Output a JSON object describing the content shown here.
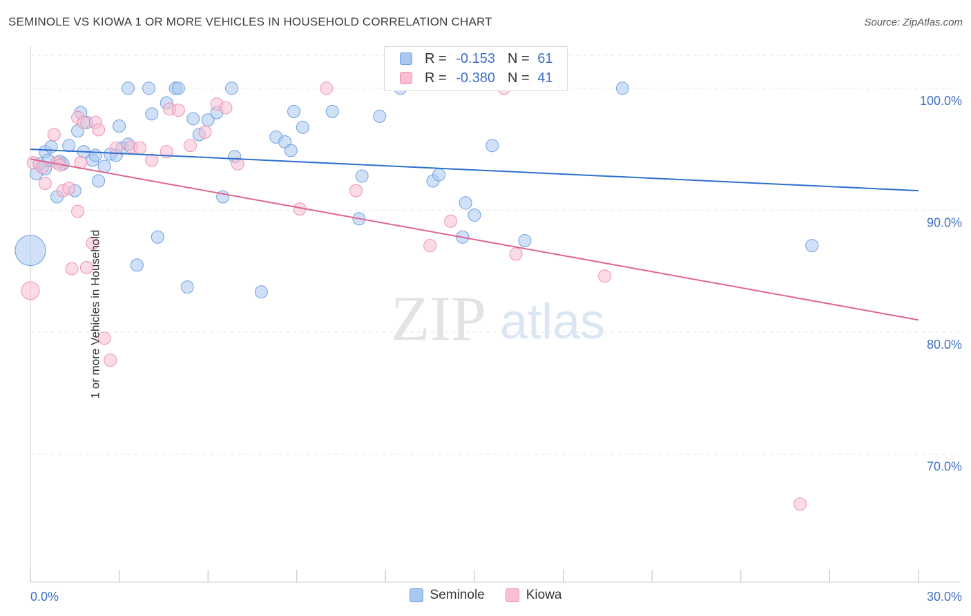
{
  "title": "SEMINOLE VS KIOWA 1 OR MORE VEHICLES IN HOUSEHOLD CORRELATION CHART",
  "source": "Source: ZipAtlas.com",
  "watermark": {
    "zip": "ZIP",
    "atlas": "atlas"
  },
  "legend_top": [
    {
      "r_label": "R =",
      "r_value": "-0.153",
      "n_label": "N =",
      "n_value": "61",
      "color": "#a9c8f0",
      "stroke": "#6c9fe0"
    },
    {
      "r_label": "R =",
      "r_value": "-0.380",
      "n_label": "N =",
      "n_value": "41",
      "color": "#f8c0d2",
      "stroke": "#ee8fb0"
    }
  ],
  "chart_data": {
    "type": "scatter",
    "title": "SEMINOLE VS KIOWA 1 OR MORE VEHICLES IN HOUSEHOLD CORRELATION CHART",
    "xlabel": "",
    "ylabel": "1 or more Vehicles in Household",
    "xlim": [
      0,
      30
    ],
    "ylim": [
      59.5,
      103.5
    ],
    "x_tick_labels": [
      "0.0%",
      "30.0%"
    ],
    "y_ticks": [
      70,
      80,
      90,
      100
    ],
    "y_tick_labels": [
      "70.0%",
      "80.0%",
      "90.0%",
      "100.0%"
    ],
    "grid": true,
    "legend": "bottom",
    "series": [
      {
        "name": "Seminole",
        "color": "#a9c8f0",
        "stroke": "#6c9fe0",
        "line_color": "#2b6fcf",
        "trend": {
          "x": [
            0,
            30
          ],
          "y": [
            95.0,
            91.6
          ]
        },
        "points": [
          [
            0.2,
            93.0
          ],
          [
            0.5,
            93.4
          ],
          [
            0.5,
            94.8
          ],
          [
            0.6,
            94.1
          ],
          [
            0.7,
            95.2
          ],
          [
            0.9,
            91.1
          ],
          [
            1.0,
            94.0
          ],
          [
            1.1,
            93.8
          ],
          [
            1.3,
            95.3
          ],
          [
            1.5,
            91.6
          ],
          [
            1.6,
            96.5
          ],
          [
            1.7,
            98.0
          ],
          [
            1.8,
            94.8
          ],
          [
            1.9,
            97.2
          ],
          [
            2.1,
            94.1
          ],
          [
            2.2,
            94.5
          ],
          [
            2.3,
            92.4
          ],
          [
            2.5,
            93.6
          ],
          [
            2.7,
            94.6
          ],
          [
            2.9,
            94.5
          ],
          [
            3.0,
            96.9
          ],
          [
            3.1,
            95.1
          ],
          [
            3.3,
            95.4
          ],
          [
            3.3,
            100.0
          ],
          [
            3.6,
            85.5
          ],
          [
            4.0,
            100.0
          ],
          [
            4.1,
            97.9
          ],
          [
            4.3,
            87.8
          ],
          [
            4.6,
            98.8
          ],
          [
            4.9,
            100.0
          ],
          [
            5.0,
            100.0
          ],
          [
            5.3,
            83.7
          ],
          [
            5.5,
            97.5
          ],
          [
            5.7,
            96.2
          ],
          [
            6.0,
            97.4
          ],
          [
            6.3,
            98.0
          ],
          [
            6.5,
            91.1
          ],
          [
            6.8,
            100.0
          ],
          [
            6.9,
            94.4
          ],
          [
            7.8,
            83.3
          ],
          [
            8.3,
            96.0
          ],
          [
            8.6,
            95.6
          ],
          [
            8.8,
            94.9
          ],
          [
            8.9,
            98.1
          ],
          [
            9.2,
            96.8
          ],
          [
            10.2,
            98.1
          ],
          [
            11.1,
            89.3
          ],
          [
            11.2,
            92.8
          ],
          [
            11.8,
            97.7
          ],
          [
            13.6,
            92.4
          ],
          [
            13.8,
            92.9
          ],
          [
            14.6,
            87.8
          ],
          [
            14.7,
            90.6
          ],
          [
            15.0,
            89.6
          ],
          [
            15.6,
            95.3
          ],
          [
            16.7,
            87.5
          ],
          [
            20.0,
            100.0
          ],
          [
            26.4,
            87.1
          ],
          [
            0.0,
            86.7
          ],
          [
            12.5,
            100.0
          ],
          [
            0.3,
            93.8
          ]
        ],
        "radii": [
          9,
          9,
          9,
          9,
          9,
          9,
          9,
          9,
          9,
          9,
          9,
          9,
          9,
          9,
          9,
          9,
          9,
          9,
          9,
          9,
          9,
          9,
          9,
          9,
          9,
          9,
          9,
          9,
          9,
          9,
          9,
          9,
          9,
          9,
          9,
          9,
          9,
          9,
          9,
          9,
          9,
          9,
          9,
          9,
          9,
          9,
          9,
          9,
          9,
          9,
          9,
          9,
          9,
          9,
          9,
          9,
          9,
          9,
          22,
          9,
          9
        ]
      },
      {
        "name": "Kiowa",
        "color": "#f8c0d2",
        "stroke": "#ee8fb0",
        "line_color": "#e0648e",
        "trend": {
          "x": [
            0,
            30
          ],
          "y": [
            94.2,
            81.0
          ]
        },
        "points": [
          [
            0.1,
            93.9
          ],
          [
            0.4,
            93.5
          ],
          [
            0.5,
            92.2
          ],
          [
            0.8,
            96.2
          ],
          [
            0.9,
            93.9
          ],
          [
            1.0,
            93.7
          ],
          [
            1.1,
            91.6
          ],
          [
            1.3,
            91.8
          ],
          [
            1.4,
            85.2
          ],
          [
            1.6,
            97.6
          ],
          [
            1.6,
            89.9
          ],
          [
            1.8,
            97.2
          ],
          [
            1.9,
            85.3
          ],
          [
            2.1,
            87.3
          ],
          [
            2.2,
            97.2
          ],
          [
            2.3,
            96.6
          ],
          [
            2.5,
            79.5
          ],
          [
            2.7,
            77.7
          ],
          [
            2.9,
            95.1
          ],
          [
            3.4,
            95.2
          ],
          [
            3.7,
            95.1
          ],
          [
            4.1,
            94.1
          ],
          [
            4.6,
            94.8
          ],
          [
            4.7,
            98.3
          ],
          [
            5.0,
            98.2
          ],
          [
            5.4,
            95.3
          ],
          [
            5.9,
            96.4
          ],
          [
            6.3,
            98.7
          ],
          [
            6.6,
            98.4
          ],
          [
            7.0,
            93.8
          ],
          [
            9.1,
            90.1
          ],
          [
            10.0,
            100.0
          ],
          [
            11.0,
            91.6
          ],
          [
            13.5,
            87.1
          ],
          [
            14.2,
            89.1
          ],
          [
            16.4,
            86.4
          ],
          [
            16.0,
            100.0
          ],
          [
            19.4,
            84.6
          ],
          [
            26.0,
            65.9
          ],
          [
            0.0,
            83.4
          ],
          [
            1.7,
            93.9
          ]
        ],
        "radii": [
          9,
          9,
          9,
          9,
          9,
          9,
          9,
          9,
          9,
          9,
          9,
          9,
          9,
          9,
          9,
          9,
          9,
          9,
          9,
          9,
          9,
          9,
          9,
          9,
          9,
          9,
          9,
          9,
          9,
          9,
          9,
          9,
          9,
          9,
          9,
          9,
          9,
          9,
          9,
          13,
          9
        ]
      }
    ]
  }
}
